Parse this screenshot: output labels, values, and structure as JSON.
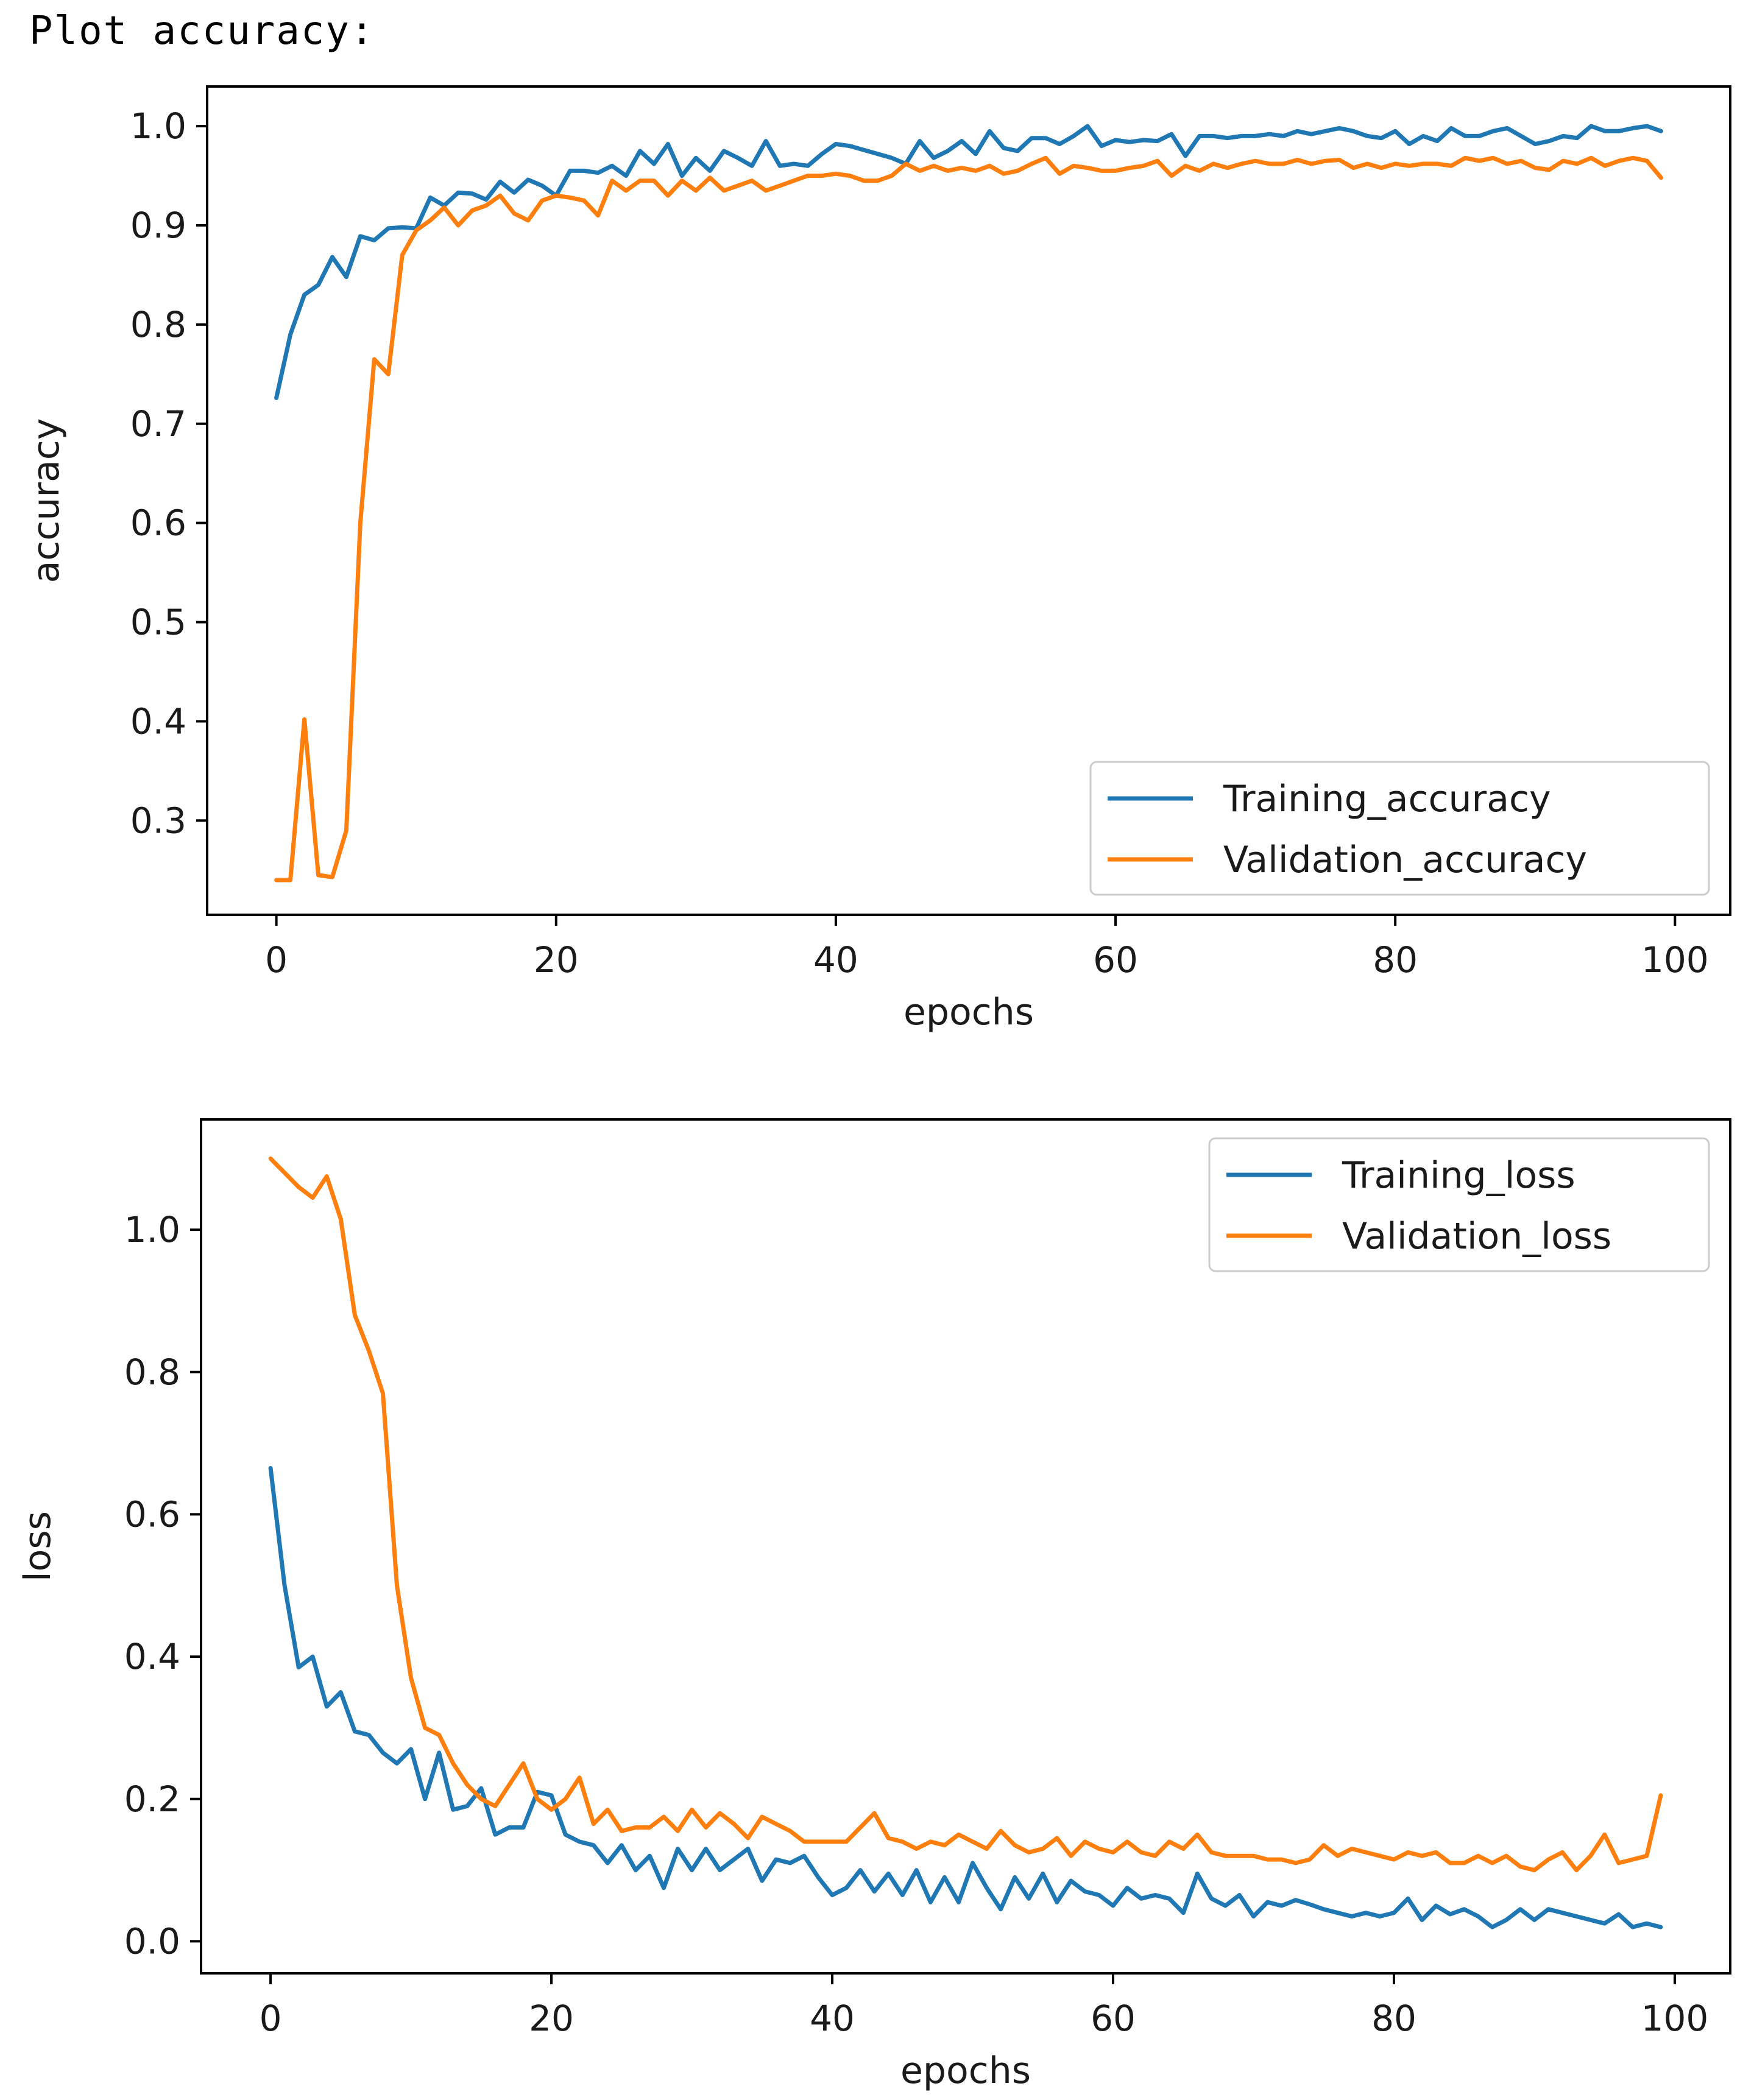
{
  "page": {
    "heading": "Plot accuracy:"
  },
  "colors": {
    "training": "#1f77b4",
    "validation": "#ff7f0e",
    "axes": "#000000",
    "legend_border": "#cccccc"
  },
  "chart_data": [
    {
      "type": "line",
      "title": "",
      "xlabel": "epochs",
      "ylabel": "accuracy",
      "xlim": [
        -4.95,
        103.95
      ],
      "ylim": [
        0.205,
        1.04
      ],
      "xticks": [
        0,
        20,
        40,
        60,
        80,
        100
      ],
      "xtick_labels": [
        "0",
        "20",
        "40",
        "60",
        "80",
        "100"
      ],
      "yticks": [
        0.3,
        0.4,
        0.5,
        0.6,
        0.7,
        0.8,
        0.9,
        1.0
      ],
      "ytick_labels": [
        "0.3",
        "0.4",
        "0.5",
        "0.6",
        "0.7",
        "0.8",
        "0.9",
        "1.0"
      ],
      "legend": {
        "position": "lower-right",
        "entries": [
          "Training_accuracy",
          "Validation_accuracy"
        ]
      },
      "series": [
        {
          "name": "Training_accuracy",
          "color": "#1f77b4",
          "x": [
            0,
            1,
            2,
            3,
            4,
            5,
            6,
            7,
            8,
            9,
            10,
            11,
            12,
            13,
            14,
            15,
            16,
            17,
            18,
            19,
            20,
            21,
            22,
            23,
            24,
            25,
            26,
            27,
            28,
            29,
            30,
            31,
            32,
            33,
            34,
            35,
            36,
            37,
            38,
            39,
            40,
            41,
            42,
            43,
            44,
            45,
            46,
            47,
            48,
            49,
            50,
            51,
            52,
            53,
            54,
            55,
            56,
            57,
            58,
            59,
            60,
            61,
            62,
            63,
            64,
            65,
            66,
            67,
            68,
            69,
            70,
            71,
            72,
            73,
            74,
            75,
            76,
            77,
            78,
            79,
            80,
            81,
            82,
            83,
            84,
            85,
            86,
            87,
            88,
            89,
            90,
            91,
            92,
            93,
            94,
            95,
            96,
            97,
            98,
            99
          ],
          "values": [
            0.726,
            0.79,
            0.83,
            0.84,
            0.868,
            0.848,
            0.889,
            0.885,
            0.897,
            0.898,
            0.897,
            0.928,
            0.92,
            0.933,
            0.932,
            0.926,
            0.944,
            0.933,
            0.946,
            0.94,
            0.93,
            0.955,
            0.955,
            0.953,
            0.96,
            0.95,
            0.975,
            0.962,
            0.982,
            0.95,
            0.968,
            0.955,
            0.975,
            0.968,
            0.96,
            0.985,
            0.96,
            0.962,
            0.96,
            0.972,
            0.982,
            0.98,
            0.976,
            0.972,
            0.968,
            0.962,
            0.985,
            0.968,
            0.975,
            0.985,
            0.972,
            0.995,
            0.978,
            0.975,
            0.988,
            0.988,
            0.982,
            0.99,
            1.0,
            0.98,
            0.986,
            0.984,
            0.986,
            0.985,
            0.992,
            0.97,
            0.99,
            0.99,
            0.988,
            0.99,
            0.99,
            0.992,
            0.99,
            0.995,
            0.992,
            0.995,
            0.998,
            0.995,
            0.99,
            0.988,
            0.995,
            0.982,
            0.99,
            0.985,
            0.998,
            0.99,
            0.99,
            0.995,
            0.998,
            0.99,
            0.982,
            0.985,
            0.99,
            0.988,
            1.0,
            0.995,
            0.995,
            0.998,
            1.0,
            0.995
          ]
        },
        {
          "name": "Validation_accuracy",
          "color": "#ff7f0e",
          "x": [
            0,
            1,
            2,
            3,
            4,
            5,
            6,
            7,
            8,
            9,
            10,
            11,
            12,
            13,
            14,
            15,
            16,
            17,
            18,
            19,
            20,
            21,
            22,
            23,
            24,
            25,
            26,
            27,
            28,
            29,
            30,
            31,
            32,
            33,
            34,
            35,
            36,
            37,
            38,
            39,
            40,
            41,
            42,
            43,
            44,
            45,
            46,
            47,
            48,
            49,
            50,
            51,
            52,
            53,
            54,
            55,
            56,
            57,
            58,
            59,
            60,
            61,
            62,
            63,
            64,
            65,
            66,
            67,
            68,
            69,
            70,
            71,
            72,
            73,
            74,
            75,
            76,
            77,
            78,
            79,
            80,
            81,
            82,
            83,
            84,
            85,
            86,
            87,
            88,
            89,
            90,
            91,
            92,
            93,
            94,
            95,
            96,
            97,
            98,
            99
          ],
          "values": [
            0.24,
            0.24,
            0.402,
            0.245,
            0.243,
            0.29,
            0.6,
            0.765,
            0.75,
            0.87,
            0.895,
            0.905,
            0.918,
            0.9,
            0.915,
            0.92,
            0.93,
            0.912,
            0.905,
            0.925,
            0.93,
            0.928,
            0.925,
            0.91,
            0.945,
            0.935,
            0.945,
            0.945,
            0.93,
            0.945,
            0.935,
            0.948,
            0.935,
            0.94,
            0.945,
            0.935,
            0.94,
            0.945,
            0.95,
            0.95,
            0.952,
            0.95,
            0.945,
            0.945,
            0.95,
            0.962,
            0.955,
            0.96,
            0.955,
            0.958,
            0.955,
            0.96,
            0.952,
            0.955,
            0.962,
            0.968,
            0.952,
            0.96,
            0.958,
            0.955,
            0.955,
            0.958,
            0.96,
            0.965,
            0.95,
            0.96,
            0.955,
            0.962,
            0.958,
            0.962,
            0.965,
            0.962,
            0.962,
            0.966,
            0.962,
            0.965,
            0.966,
            0.958,
            0.962,
            0.958,
            0.962,
            0.96,
            0.962,
            0.962,
            0.96,
            0.968,
            0.965,
            0.968,
            0.962,
            0.965,
            0.958,
            0.956,
            0.965,
            0.962,
            0.968,
            0.96,
            0.965,
            0.968,
            0.965,
            0.948
          ]
        }
      ]
    },
    {
      "type": "line",
      "title": "",
      "xlabel": "epochs",
      "ylabel": "loss",
      "xlim": [
        -4.95,
        103.95
      ],
      "ylim": [
        -0.045,
        1.155
      ],
      "xticks": [
        0,
        20,
        40,
        60,
        80,
        100
      ],
      "xtick_labels": [
        "0",
        "20",
        "40",
        "60",
        "80",
        "100"
      ],
      "yticks": [
        0.0,
        0.2,
        0.4,
        0.6,
        0.8,
        1.0
      ],
      "ytick_labels": [
        "0.0",
        "0.2",
        "0.4",
        "0.6",
        "0.8",
        "1.0"
      ],
      "legend": {
        "position": "upper-right",
        "entries": [
          "Training_loss",
          "Validation_loss"
        ]
      },
      "series": [
        {
          "name": "Training_loss",
          "color": "#1f77b4",
          "x": [
            0,
            1,
            2,
            3,
            4,
            5,
            6,
            7,
            8,
            9,
            10,
            11,
            12,
            13,
            14,
            15,
            16,
            17,
            18,
            19,
            20,
            21,
            22,
            23,
            24,
            25,
            26,
            27,
            28,
            29,
            30,
            31,
            32,
            33,
            34,
            35,
            36,
            37,
            38,
            39,
            40,
            41,
            42,
            43,
            44,
            45,
            46,
            47,
            48,
            49,
            50,
            51,
            52,
            53,
            54,
            55,
            56,
            57,
            58,
            59,
            60,
            61,
            62,
            63,
            64,
            65,
            66,
            67,
            68,
            69,
            70,
            71,
            72,
            73,
            74,
            75,
            76,
            77,
            78,
            79,
            80,
            81,
            82,
            83,
            84,
            85,
            86,
            87,
            88,
            89,
            90,
            91,
            92,
            93,
            94,
            95,
            96,
            97,
            98,
            99
          ],
          "values": [
            0.665,
            0.5,
            0.385,
            0.4,
            0.33,
            0.35,
            0.295,
            0.29,
            0.265,
            0.25,
            0.27,
            0.2,
            0.265,
            0.185,
            0.19,
            0.215,
            0.15,
            0.16,
            0.16,
            0.21,
            0.205,
            0.15,
            0.14,
            0.135,
            0.11,
            0.135,
            0.1,
            0.12,
            0.075,
            0.13,
            0.1,
            0.13,
            0.1,
            0.115,
            0.13,
            0.085,
            0.115,
            0.11,
            0.12,
            0.09,
            0.065,
            0.075,
            0.1,
            0.07,
            0.095,
            0.065,
            0.1,
            0.055,
            0.09,
            0.055,
            0.11,
            0.075,
            0.045,
            0.09,
            0.06,
            0.095,
            0.055,
            0.085,
            0.07,
            0.065,
            0.05,
            0.075,
            0.06,
            0.065,
            0.06,
            0.04,
            0.095,
            0.06,
            0.05,
            0.065,
            0.035,
            0.055,
            0.05,
            0.058,
            0.052,
            0.045,
            0.04,
            0.035,
            0.04,
            0.035,
            0.04,
            0.06,
            0.03,
            0.05,
            0.038,
            0.045,
            0.035,
            0.02,
            0.03,
            0.045,
            0.03,
            0.045,
            0.04,
            0.035,
            0.03,
            0.025,
            0.038,
            0.02,
            0.025,
            0.02
          ]
        },
        {
          "name": "Validation_loss",
          "color": "#ff7f0e",
          "x": [
            0,
            1,
            2,
            3,
            4,
            5,
            6,
            7,
            8,
            9,
            10,
            11,
            12,
            13,
            14,
            15,
            16,
            17,
            18,
            19,
            20,
            21,
            22,
            23,
            24,
            25,
            26,
            27,
            28,
            29,
            30,
            31,
            32,
            33,
            34,
            35,
            36,
            37,
            38,
            39,
            40,
            41,
            42,
            43,
            44,
            45,
            46,
            47,
            48,
            49,
            50,
            51,
            52,
            53,
            54,
            55,
            56,
            57,
            58,
            59,
            60,
            61,
            62,
            63,
            64,
            65,
            66,
            67,
            68,
            69,
            70,
            71,
            72,
            73,
            74,
            75,
            76,
            77,
            78,
            79,
            80,
            81,
            82,
            83,
            84,
            85,
            86,
            87,
            88,
            89,
            90,
            91,
            92,
            93,
            94,
            95,
            96,
            97,
            98,
            99
          ],
          "values": [
            1.1,
            1.08,
            1.06,
            1.045,
            1.075,
            1.015,
            0.88,
            0.83,
            0.77,
            0.5,
            0.37,
            0.3,
            0.29,
            0.25,
            0.22,
            0.2,
            0.19,
            0.22,
            0.25,
            0.2,
            0.185,
            0.2,
            0.23,
            0.165,
            0.185,
            0.155,
            0.16,
            0.16,
            0.175,
            0.155,
            0.185,
            0.16,
            0.18,
            0.165,
            0.145,
            0.175,
            0.165,
            0.155,
            0.14,
            0.14,
            0.14,
            0.14,
            0.16,
            0.18,
            0.145,
            0.14,
            0.13,
            0.14,
            0.135,
            0.15,
            0.14,
            0.13,
            0.155,
            0.135,
            0.125,
            0.13,
            0.145,
            0.12,
            0.14,
            0.13,
            0.125,
            0.14,
            0.125,
            0.12,
            0.14,
            0.13,
            0.15,
            0.125,
            0.12,
            0.12,
            0.12,
            0.115,
            0.115,
            0.11,
            0.115,
            0.135,
            0.12,
            0.13,
            0.125,
            0.12,
            0.115,
            0.125,
            0.12,
            0.125,
            0.11,
            0.11,
            0.12,
            0.11,
            0.12,
            0.105,
            0.1,
            0.115,
            0.125,
            0.1,
            0.12,
            0.15,
            0.11,
            0.115,
            0.12,
            0.205
          ]
        }
      ]
    }
  ]
}
